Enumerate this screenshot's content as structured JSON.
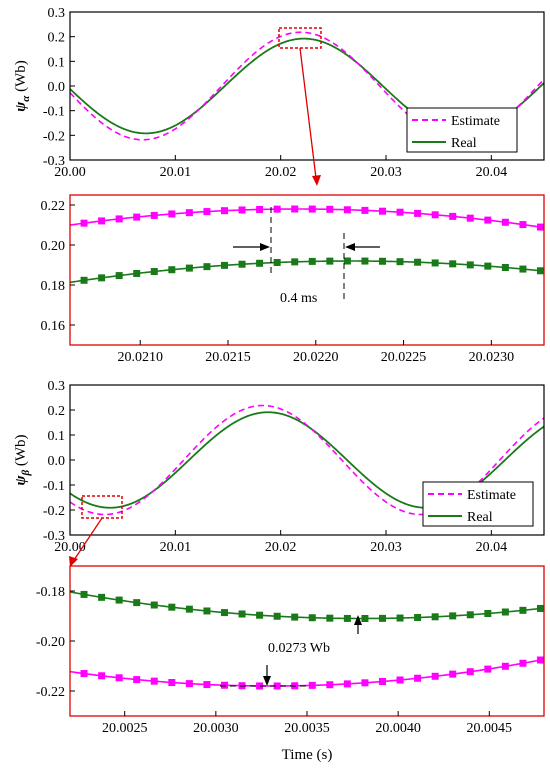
{
  "chart_data": [
    {
      "type": "line",
      "ylabel_symbol": "ψ",
      "ylabel_subscript": "α",
      "ylabel_unit": " (Wb)",
      "xlim": [
        20.0,
        20.045
      ],
      "ylim": [
        -0.3,
        0.3
      ],
      "xticks": [
        "20.00",
        "20.01",
        "20.02",
        "20.03",
        "20.04"
      ],
      "xtick_values": [
        20.0,
        20.01,
        20.02,
        20.03,
        20.04
      ],
      "yticks": [
        "-0.3",
        "-0.2",
        "-0.1",
        "0.0",
        "0.1",
        "0.2",
        "0.3"
      ],
      "ytick_values": [
        -0.3,
        -0.2,
        -0.1,
        0.0,
        0.1,
        0.2,
        0.3
      ],
      "frequency_hz": 33.333,
      "series": [
        {
          "name": "Estimate",
          "amplitude": 0.218,
          "peak_time": 20.0219,
          "color": "#ff00ff",
          "dash": "dashed"
        },
        {
          "name": "Real",
          "amplitude": 0.192,
          "peak_time": 20.0222,
          "color": "#1a7a1a",
          "dash": "solid"
        }
      ],
      "legend": {
        "position": "lower-right",
        "entries": [
          "Estimate",
          "Real"
        ]
      },
      "zoom_box": {
        "x": [
          20.021,
          20.0233
        ],
        "y": [
          0.15,
          0.225
        ]
      }
    },
    {
      "type": "line",
      "xlim": [
        20.0206,
        20.0233
      ],
      "ylim": [
        0.15,
        0.225
      ],
      "xticks": [
        "20.0210",
        "20.0215",
        "20.0220",
        "20.0225",
        "20.0230"
      ],
      "xtick_values": [
        20.021,
        20.0215,
        20.022,
        20.0225,
        20.023
      ],
      "yticks": [
        "0.16",
        "0.18",
        "0.20",
        "0.22"
      ],
      "ytick_values": [
        0.16,
        0.18,
        0.2,
        0.22
      ],
      "marker": "square",
      "series": [
        {
          "name": "Estimate",
          "amplitude": 0.218,
          "peak_time": 20.0219,
          "color": "#ff00ff"
        },
        {
          "name": "Real",
          "amplitude": 0.192,
          "peak_time": 20.0222,
          "color": "#1a7a1a"
        }
      ],
      "annotation": {
        "text": "0.4 ms",
        "x1": 20.0218,
        "x2": 20.0222
      }
    },
    {
      "type": "line",
      "ylabel_symbol": "ψ",
      "ylabel_subscript": "β",
      "ylabel_unit": " (Wb)",
      "xlim": [
        20.0,
        20.045
      ],
      "ylim": [
        -0.3,
        0.3
      ],
      "xticks": [
        "20.00",
        "20.01",
        "20.02",
        "20.03",
        "20.04"
      ],
      "xtick_values": [
        20.0,
        20.01,
        20.02,
        20.03,
        20.04
      ],
      "yticks": [
        "-0.3",
        "-0.2",
        "-0.1",
        "0.0",
        "0.1",
        "0.2",
        "0.3"
      ],
      "ytick_values": [
        -0.3,
        -0.2,
        -0.1,
        0.0,
        0.1,
        0.2,
        0.3
      ],
      "frequency_hz": 33.333,
      "series": [
        {
          "name": "Estimate",
          "amplitude": 0.218,
          "trough_time": 20.0033,
          "color": "#ff00ff",
          "dash": "dashed"
        },
        {
          "name": "Real",
          "amplitude": 0.191,
          "trough_time": 20.0038,
          "color": "#1a7a1a",
          "dash": "solid"
        }
      ],
      "legend": {
        "position": "lower-right",
        "entries": [
          "Estimate",
          "Real"
        ]
      },
      "zoom_box": {
        "x": [
          20.0022,
          20.0048
        ],
        "y": [
          -0.235,
          -0.17
        ]
      }
    },
    {
      "type": "line",
      "xlabel": "Time (s)",
      "xlim": [
        20.0022,
        20.0048
      ],
      "ylim": [
        -0.23,
        -0.17
      ],
      "xticks": [
        "20.0025",
        "20.0030",
        "20.0035",
        "20.0040",
        "20.0045"
      ],
      "xtick_values": [
        20.0025,
        20.003,
        20.0035,
        20.004,
        20.0045
      ],
      "yticks": [
        "-0.18",
        "-0.20",
        "-0.22"
      ],
      "ytick_values": [
        -0.18,
        -0.2,
        -0.22
      ],
      "marker": "square",
      "series": [
        {
          "name": "Estimate",
          "amplitude": 0.218,
          "trough_time": 20.0033,
          "color": "#ff00ff"
        },
        {
          "name": "Real",
          "amplitude": 0.191,
          "trough_time": 20.0038,
          "color": "#1a7a1a"
        }
      ],
      "annotation": {
        "text": "0.0273 Wb",
        "y1": -0.2183,
        "y2": -0.191
      }
    }
  ]
}
